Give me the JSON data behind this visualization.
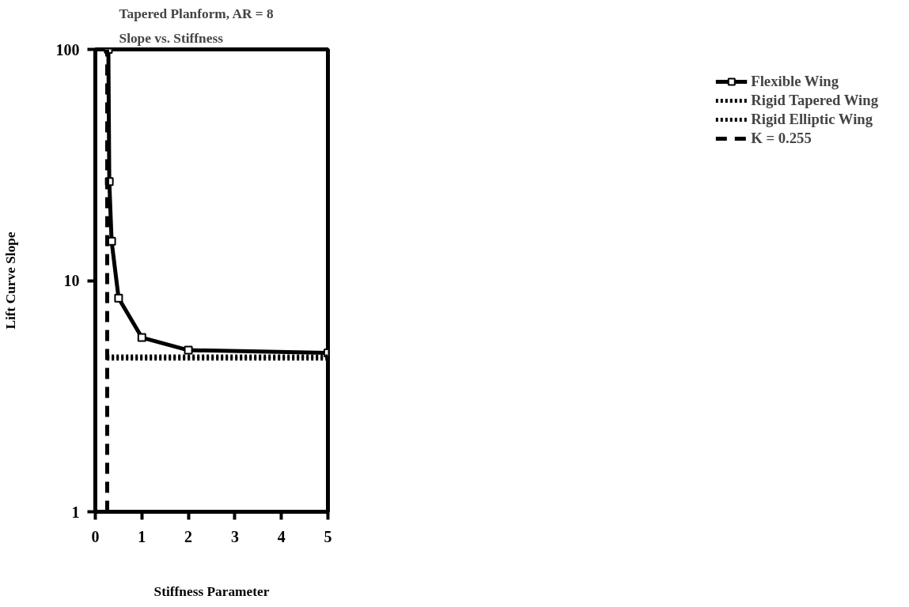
{
  "chart_data": {
    "type": "line",
    "title": "Tapered Planform, AR = 8",
    "subtitle": "Slope vs. Stiffness",
    "xlabel": "Stiffness Parameter",
    "ylabel": "Lift Curve Slope",
    "series": [
      {
        "name": "Flexible Wing",
        "color": "#000000",
        "x": [
          0.28,
          0.3,
          0.35,
          0.5,
          1,
          2,
          5
        ],
        "values": [
          100,
          26.8,
          14.8,
          8.4,
          5.67,
          5.0,
          4.87
        ],
        "marker": "square",
        "line_style": "solid"
      },
      {
        "name": "Rigid Tapered Wing",
        "color": "#000000",
        "x": [
          0.25,
          5
        ],
        "values": [
          4.7,
          4.7
        ],
        "marker": "none",
        "line_style": "dotted"
      },
      {
        "name": "Rigid Elliptic Wing",
        "color": "#000000",
        "x": [
          0.25,
          5
        ],
        "values": [
          4.6,
          4.6
        ],
        "marker": "none",
        "line_style": "dotted"
      },
      {
        "name": "K = 0.255",
        "color": "#000000",
        "x": [
          0.255,
          0.255
        ],
        "values": [
          1,
          100
        ],
        "marker": "none",
        "line_style": "dashed"
      }
    ],
    "log": "y",
    "xlim": [
      0,
      5
    ],
    "ylim": [
      1,
      100
    ],
    "xticks": [
      0,
      1,
      2,
      3,
      4,
      5
    ],
    "yticks": [
      1,
      10,
      100
    ],
    "grid": false,
    "legend": "right"
  }
}
